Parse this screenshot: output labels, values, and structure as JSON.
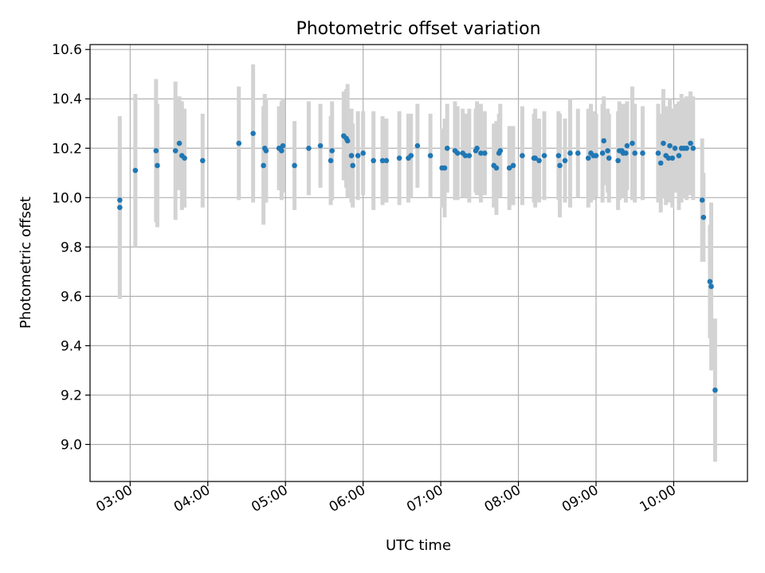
{
  "chart_data": {
    "type": "scatter",
    "title": "Photometric offset variation",
    "xlabel": "UTC time",
    "ylabel": "Photometric offset",
    "x_unit": "UTC time (HH:MM)",
    "xlim": [
      "02:29",
      "10:57"
    ],
    "ylim": [
      8.85,
      10.62
    ],
    "x_ticks": [
      "03:00",
      "04:00",
      "05:00",
      "06:00",
      "07:00",
      "08:00",
      "09:00",
      "10:00"
    ],
    "y_ticks": [
      "9.0",
      "9.2",
      "9.4",
      "9.6",
      "9.8",
      "10.0",
      "10.2",
      "10.4",
      "10.6"
    ],
    "grid": true,
    "point_color": "#1f77b4",
    "errorbar_color": "#d3d3d3",
    "points": [
      {
        "x": "02:52",
        "y": 9.99,
        "err": 0.18
      },
      {
        "x": "02:52",
        "y": 9.96,
        "err": 0.37
      },
      {
        "x": "03:04",
        "y": 10.11,
        "err": 0.31
      },
      {
        "x": "03:20",
        "y": 10.19,
        "err": 0.29
      },
      {
        "x": "03:21",
        "y": 10.13,
        "err": 0.25
      },
      {
        "x": "03:35",
        "y": 10.19,
        "err": 0.28
      },
      {
        "x": "03:38",
        "y": 10.22,
        "err": 0.19
      },
      {
        "x": "03:40",
        "y": 10.17,
        "err": 0.22
      },
      {
        "x": "03:42",
        "y": 10.16,
        "err": 0.2
      },
      {
        "x": "03:56",
        "y": 10.15,
        "err": 0.19
      },
      {
        "x": "04:24",
        "y": 10.22,
        "err": 0.23
      },
      {
        "x": "04:35",
        "y": 10.26,
        "err": 0.28
      },
      {
        "x": "04:43",
        "y": 10.13,
        "err": 0.24
      },
      {
        "x": "04:44",
        "y": 10.2,
        "err": 0.22
      },
      {
        "x": "04:45",
        "y": 10.19,
        "err": 0.21
      },
      {
        "x": "04:55",
        "y": 10.2,
        "err": 0.17
      },
      {
        "x": "04:57",
        "y": 10.19,
        "err": 0.2
      },
      {
        "x": "04:58",
        "y": 10.21,
        "err": 0.19
      },
      {
        "x": "05:07",
        "y": 10.13,
        "err": 0.18
      },
      {
        "x": "05:18",
        "y": 10.2,
        "err": 0.19
      },
      {
        "x": "05:27",
        "y": 10.21,
        "err": 0.17
      },
      {
        "x": "05:35",
        "y": 10.15,
        "err": 0.18
      },
      {
        "x": "05:36",
        "y": 10.19,
        "err": 0.2
      },
      {
        "x": "05:45",
        "y": 10.25,
        "err": 0.18
      },
      {
        "x": "05:47",
        "y": 10.24,
        "err": 0.2
      },
      {
        "x": "05:48",
        "y": 10.23,
        "err": 0.23
      },
      {
        "x": "05:51",
        "y": 10.17,
        "err": 0.19
      },
      {
        "x": "05:52",
        "y": 10.13,
        "err": 0.17
      },
      {
        "x": "05:56",
        "y": 10.17,
        "err": 0.18
      },
      {
        "x": "06:00",
        "y": 10.18,
        "err": 0.17
      },
      {
        "x": "06:08",
        "y": 10.15,
        "err": 0.2
      },
      {
        "x": "06:15",
        "y": 10.15,
        "err": 0.18
      },
      {
        "x": "06:18",
        "y": 10.15,
        "err": 0.17
      },
      {
        "x": "06:28",
        "y": 10.16,
        "err": 0.19
      },
      {
        "x": "06:35",
        "y": 10.16,
        "err": 0.18
      },
      {
        "x": "06:37",
        "y": 10.17,
        "err": 0.17
      },
      {
        "x": "06:42",
        "y": 10.21,
        "err": 0.17
      },
      {
        "x": "06:52",
        "y": 10.17,
        "err": 0.17
      },
      {
        "x": "07:01",
        "y": 10.12,
        "err": 0.16
      },
      {
        "x": "07:03",
        "y": 10.12,
        "err": 0.2
      },
      {
        "x": "07:05",
        "y": 10.2,
        "err": 0.18
      },
      {
        "x": "07:11",
        "y": 10.19,
        "err": 0.2
      },
      {
        "x": "07:13",
        "y": 10.18,
        "err": 0.19
      },
      {
        "x": "07:17",
        "y": 10.18,
        "err": 0.18
      },
      {
        "x": "07:19",
        "y": 10.17,
        "err": 0.17
      },
      {
        "x": "07:22",
        "y": 10.17,
        "err": 0.19
      },
      {
        "x": "07:27",
        "y": 10.19,
        "err": 0.17
      },
      {
        "x": "07:28",
        "y": 10.2,
        "err": 0.19
      },
      {
        "x": "07:31",
        "y": 10.18,
        "err": 0.2
      },
      {
        "x": "07:34",
        "y": 10.18,
        "err": 0.17
      },
      {
        "x": "07:41",
        "y": 10.13,
        "err": 0.17
      },
      {
        "x": "07:43",
        "y": 10.12,
        "err": 0.19
      },
      {
        "x": "07:45",
        "y": 10.18,
        "err": 0.16
      },
      {
        "x": "07:46",
        "y": 10.19,
        "err": 0.19
      },
      {
        "x": "07:53",
        "y": 10.12,
        "err": 0.17
      },
      {
        "x": "07:56",
        "y": 10.13,
        "err": 0.16
      },
      {
        "x": "08:03",
        "y": 10.17,
        "err": 0.2
      },
      {
        "x": "08:12",
        "y": 10.16,
        "err": 0.18
      },
      {
        "x": "08:13",
        "y": 10.16,
        "err": 0.2
      },
      {
        "x": "08:16",
        "y": 10.15,
        "err": 0.17
      },
      {
        "x": "08:20",
        "y": 10.17,
        "err": 0.18
      },
      {
        "x": "08:31",
        "y": 10.17,
        "err": 0.18
      },
      {
        "x": "08:32",
        "y": 10.13,
        "err": 0.21
      },
      {
        "x": "08:36",
        "y": 10.15,
        "err": 0.17
      },
      {
        "x": "08:40",
        "y": 10.18,
        "err": 0.22
      },
      {
        "x": "08:46",
        "y": 10.18,
        "err": 0.18
      },
      {
        "x": "08:54",
        "y": 10.16,
        "err": 0.2
      },
      {
        "x": "08:56",
        "y": 10.18,
        "err": 0.2
      },
      {
        "x": "08:58",
        "y": 10.17,
        "err": 0.18
      },
      {
        "x": "09:00",
        "y": 10.17,
        "err": 0.17
      },
      {
        "x": "09:05",
        "y": 10.18,
        "err": 0.2
      },
      {
        "x": "09:06",
        "y": 10.23,
        "err": 0.18
      },
      {
        "x": "09:09",
        "y": 10.19,
        "err": 0.17
      },
      {
        "x": "09:10",
        "y": 10.16,
        "err": 0.18
      },
      {
        "x": "09:17",
        "y": 10.15,
        "err": 0.2
      },
      {
        "x": "09:18",
        "y": 10.19,
        "err": 0.2
      },
      {
        "x": "09:20",
        "y": 10.19,
        "err": 0.19
      },
      {
        "x": "09:21",
        "y": 10.18,
        "err": 0.18
      },
      {
        "x": "09:23",
        "y": 10.18,
        "err": 0.2
      },
      {
        "x": "09:24",
        "y": 10.21,
        "err": 0.18
      },
      {
        "x": "09:28",
        "y": 10.22,
        "err": 0.23
      },
      {
        "x": "09:30",
        "y": 10.18,
        "err": 0.2
      },
      {
        "x": "09:36",
        "y": 10.18,
        "err": 0.19
      },
      {
        "x": "09:48",
        "y": 10.18,
        "err": 0.2
      },
      {
        "x": "09:50",
        "y": 10.14,
        "err": 0.2
      },
      {
        "x": "09:52",
        "y": 10.22,
        "err": 0.22
      },
      {
        "x": "09:54",
        "y": 10.17,
        "err": 0.2
      },
      {
        "x": "09:56",
        "y": 10.16,
        "err": 0.18
      },
      {
        "x": "09:57",
        "y": 10.21,
        "err": 0.19
      },
      {
        "x": "09:59",
        "y": 10.16,
        "err": 0.2
      },
      {
        "x": "10:01",
        "y": 10.2,
        "err": 0.18
      },
      {
        "x": "10:04",
        "y": 10.17,
        "err": 0.22
      },
      {
        "x": "10:06",
        "y": 10.2,
        "err": 0.22
      },
      {
        "x": "10:08",
        "y": 10.2,
        "err": 0.2
      },
      {
        "x": "10:10",
        "y": 10.2,
        "err": 0.21
      },
      {
        "x": "10:13",
        "y": 10.22,
        "err": 0.21
      },
      {
        "x": "10:15",
        "y": 10.2,
        "err": 0.21
      },
      {
        "x": "10:22",
        "y": 9.99,
        "err": 0.25
      },
      {
        "x": "10:23",
        "y": 9.92,
        "err": 0.18
      },
      {
        "x": "10:28",
        "y": 9.66,
        "err": 0.23
      },
      {
        "x": "10:29",
        "y": 9.64,
        "err": 0.34
      },
      {
        "x": "10:32",
        "y": 9.22,
        "err": 0.29
      }
    ]
  }
}
